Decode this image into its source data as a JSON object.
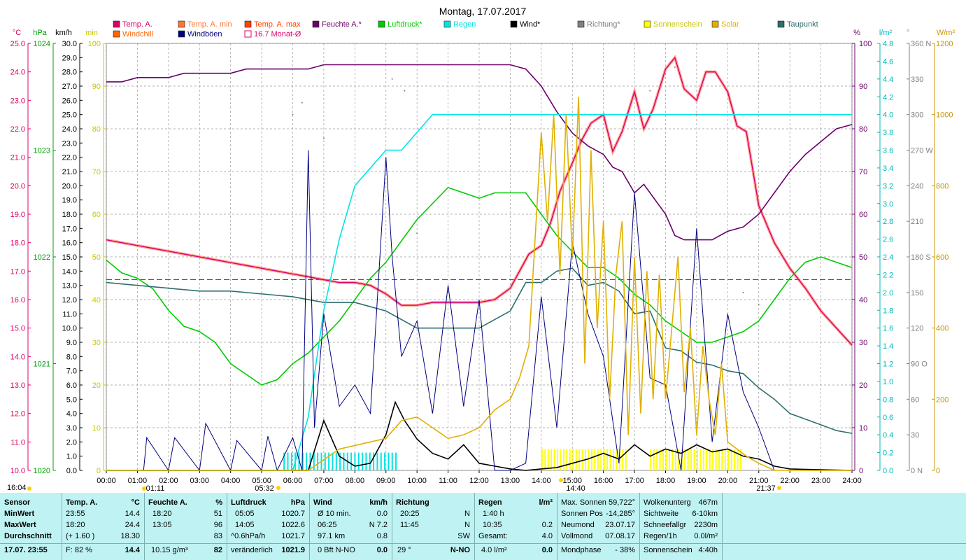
{
  "title": "Montag, 17.07.2017",
  "axis_heads": {
    "temp": "°C",
    "hpa": "hPa",
    "kmh": "km/h",
    "min": "min",
    "pct": "%",
    "lm2": "l/m²",
    "deg": "°",
    "wm2": "W/m²"
  },
  "legend": [
    {
      "label": "Temp. A.",
      "color": "#e0006a",
      "box": "fill"
    },
    {
      "label": "Windchill",
      "color": "#ff6600",
      "box": "fill"
    },
    {
      "label": "Temp. A. min",
      "color": "#ff7733",
      "box": "fill"
    },
    {
      "label": "Windböen",
      "color": "#000080",
      "box": "fill"
    },
    {
      "label": "Temp. A. max",
      "color": "#ff4400",
      "box": "fill"
    },
    {
      "label": "16.7 Monat-Ø",
      "color": "#e0006a",
      "box": "outline"
    },
    {
      "label": "Feuchte A.*",
      "color": "#6b006b",
      "box": "fill"
    },
    {
      "label": "Luftdruck*",
      "color": "#00cc00",
      "box": "fill"
    },
    {
      "label": "Regen",
      "color": "#00e5e5",
      "box": "fill"
    },
    {
      "label": "Wind*",
      "color": "#000000",
      "box": "fill"
    },
    {
      "label": "Richtung*",
      "color": "#808080",
      "box": "fill"
    },
    {
      "label": "Sonnenschein",
      "color": "#ffff00",
      "box": "fill"
    },
    {
      "label": "Solar",
      "color": "#e0b000",
      "box": "fill"
    },
    {
      "label": "Taupunkt",
      "color": "#2f6f6f",
      "box": "fill"
    }
  ],
  "colors": {
    "temp_axis": "#e0006a",
    "hpa_axis": "#00a000",
    "kmh_axis": "#000000",
    "min_axis": "#c8c800",
    "pct_axis": "#6b006b",
    "lm2_axis": "#00b8b8",
    "deg_axis": "#808080",
    "wm2_axis": "#c89600"
  },
  "chart_data": {
    "type": "line",
    "x_ticks": [
      "00:00",
      "01:00",
      "02:00",
      "03:00",
      "04:00",
      "05:00",
      "06:00",
      "07:00",
      "08:00",
      "09:00",
      "10:00",
      "11:00",
      "12:00",
      "13:00",
      "14:00",
      "15:00",
      "16:00",
      "17:00",
      "18:00",
      "19:00",
      "20:00",
      "21:00",
      "22:00",
      "23:00",
      "24:00"
    ],
    "x_range_hours": [
      0,
      24
    ],
    "axes": {
      "temp_c": {
        "range": [
          10,
          25
        ],
        "ticks": [
          "10.0",
          "11.0",
          "12.0",
          "13.0",
          "14.0",
          "15.0",
          "16.0",
          "17.0",
          "18.0",
          "19.0",
          "20.0",
          "21.0",
          "22.0",
          "23.0",
          "24.0",
          "25.0"
        ]
      },
      "pressure_hpa": {
        "range": [
          1020,
          1024
        ],
        "ticks": [
          "1020",
          "1021",
          "1022",
          "1023",
          "1024"
        ]
      },
      "wind_kmh": {
        "range": [
          0,
          30
        ],
        "ticks": [
          "0.0",
          "1.0",
          "2.0",
          "3.0",
          "4.0",
          "5.0",
          "6.0",
          "7.0",
          "8.0",
          "9.0",
          "10.0",
          "11.0",
          "12.0",
          "13.0",
          "14.0",
          "15.0",
          "16.0",
          "17.0",
          "18.0",
          "19.0",
          "20.0",
          "21.0",
          "22.0",
          "23.0",
          "24.0",
          "25.0",
          "26.0",
          "27.0",
          "28.0",
          "29.0",
          "30.0"
        ]
      },
      "sun_min": {
        "range": [
          0,
          100
        ],
        "ticks": [
          "0",
          "10",
          "20",
          "30",
          "40",
          "50",
          "60",
          "70",
          "80",
          "90",
          "100"
        ]
      },
      "humidity_pct": {
        "range": [
          0,
          100
        ],
        "ticks": [
          "0",
          "10",
          "20",
          "30",
          "40",
          "50",
          "60",
          "70",
          "80",
          "90",
          "100"
        ]
      },
      "rain_lm2": {
        "range": [
          0,
          4.8
        ],
        "ticks": [
          "0.0",
          "0.2",
          "0.4",
          "0.6",
          "0.8",
          "1.0",
          "1.2",
          "1.4",
          "1.6",
          "1.8",
          "2.0",
          "2.2",
          "2.4",
          "2.6",
          "2.8",
          "3.0",
          "3.2",
          "3.4",
          "3.6",
          "3.8",
          "4.0",
          "4.2",
          "4.4",
          "4.6",
          "4.8"
        ]
      },
      "direction_deg": {
        "range": [
          0,
          360
        ],
        "ticks": [
          "0 N",
          "30",
          "60",
          "90 O",
          "120",
          "150",
          "180 S",
          "210",
          "240",
          "270 W",
          "300",
          "330",
          "360 N"
        ]
      },
      "solar_wm2": {
        "range": [
          0,
          1200
        ],
        "ticks": [
          "0",
          "200",
          "400",
          "600",
          "800",
          "1000",
          "1200"
        ]
      }
    },
    "monthly_avg_temp": 16.7,
    "series": [
      {
        "name": "Temp. A.",
        "axis": "temp_c",
        "color": "#e0006a",
        "x": [
          0,
          0.5,
          1,
          1.5,
          2,
          2.5,
          3,
          3.5,
          4,
          4.5,
          5,
          5.5,
          6,
          6.5,
          7,
          7.5,
          8,
          8.5,
          9,
          9.5,
          10,
          10.5,
          11,
          11.5,
          12,
          12.5,
          13,
          13.3,
          13.6,
          14,
          14.3,
          14.6,
          15,
          15.3,
          15.6,
          16,
          16.3,
          16.6,
          17,
          17.3,
          17.6,
          18,
          18.3,
          18.6,
          19,
          19.3,
          19.6,
          20,
          20.3,
          20.6,
          21,
          21.5,
          22,
          22.5,
          23,
          23.5,
          24
        ],
        "y": [
          18.1,
          18.0,
          17.9,
          17.8,
          17.7,
          17.6,
          17.5,
          17.4,
          17.3,
          17.2,
          17.1,
          17.0,
          16.9,
          16.8,
          16.7,
          16.6,
          16.6,
          16.5,
          16.2,
          15.8,
          15.8,
          15.9,
          15.9,
          15.9,
          15.9,
          16.0,
          16.4,
          17.0,
          17.6,
          17.9,
          18.7,
          19.8,
          20.8,
          21.6,
          22.2,
          22.5,
          21.2,
          21.9,
          23.3,
          22.0,
          22.7,
          24.1,
          24.5,
          23.4,
          23.0,
          24.0,
          24.0,
          23.3,
          22.1,
          21.9,
          19.3,
          18.0,
          17.1,
          16.4,
          15.6,
          15.0,
          14.4
        ]
      },
      {
        "name": "Feuchte A.*",
        "axis": "humidity_pct",
        "color": "#6b006b",
        "x": [
          0,
          0.5,
          1,
          1.5,
          2,
          2.5,
          3,
          3.5,
          4,
          4.5,
          5,
          5.5,
          6,
          6.5,
          7,
          7.5,
          8,
          8.5,
          9,
          9.5,
          10,
          10.5,
          11,
          11.5,
          12,
          12.5,
          13,
          13.5,
          14,
          14.5,
          15,
          15.5,
          16,
          16.3,
          16.6,
          17,
          17.3,
          17.6,
          18,
          18.3,
          18.6,
          19,
          19.5,
          20,
          20.5,
          21,
          21.5,
          22,
          22.5,
          23,
          23.5,
          24
        ],
        "y": [
          91,
          91,
          92,
          92,
          92,
          93,
          93,
          93,
          93,
          94,
          94,
          94,
          94,
          94,
          95,
          95,
          95,
          95,
          95,
          95,
          95,
          95,
          95,
          95,
          95,
          95,
          95,
          94,
          90,
          84,
          79,
          76,
          74,
          71,
          70,
          65,
          67,
          64,
          60,
          55,
          54,
          54,
          54,
          56,
          57,
          60,
          65,
          70,
          74,
          77,
          80,
          81
        ]
      },
      {
        "name": "Luftdruck*",
        "axis": "pressure_hpa",
        "color": "#00cc00",
        "x": [
          0,
          0.5,
          1,
          1.5,
          2,
          2.5,
          3,
          3.5,
          4,
          4.5,
          5,
          5.5,
          6,
          6.5,
          7,
          7.5,
          8,
          8.5,
          9,
          9.5,
          10,
          10.5,
          11,
          11.5,
          12,
          12.5,
          13,
          13.5,
          14,
          14.5,
          15,
          15.5,
          16,
          16.5,
          17,
          17.5,
          18,
          18.5,
          19,
          19.5,
          20,
          20.5,
          21,
          21.5,
          22,
          22.5,
          23,
          23.5,
          24
        ],
        "y": [
          1021.97,
          1021.85,
          1021.8,
          1021.7,
          1021.5,
          1021.35,
          1021.3,
          1021.2,
          1021.0,
          1020.9,
          1020.8,
          1020.85,
          1021.0,
          1021.1,
          1021.25,
          1021.4,
          1021.6,
          1021.8,
          1021.95,
          1022.15,
          1022.35,
          1022.5,
          1022.65,
          1022.6,
          1022.55,
          1022.6,
          1022.6,
          1022.6,
          1022.4,
          1022.2,
          1022.05,
          1021.9,
          1021.9,
          1021.8,
          1021.65,
          1021.55,
          1021.4,
          1021.3,
          1021.2,
          1021.2,
          1021.25,
          1021.3,
          1021.4,
          1021.6,
          1021.8,
          1021.95,
          1022.0,
          1021.95,
          1021.9
        ]
      },
      {
        "name": "Taupunkt",
        "axis": "temp_c",
        "color": "#2f6f6f",
        "x": [
          0,
          1,
          2,
          3,
          4,
          5,
          6,
          7,
          8,
          9,
          10,
          11,
          12,
          13,
          13.5,
          14,
          14.5,
          15,
          15.5,
          16,
          16.5,
          17,
          17.5,
          18,
          18.5,
          19,
          19.5,
          20,
          20.5,
          21,
          21.5,
          22,
          22.5,
          23,
          23.5,
          24
        ],
        "y": [
          16.6,
          16.5,
          16.4,
          16.3,
          16.3,
          16.2,
          16.1,
          15.9,
          15.9,
          15.6,
          15.0,
          15.0,
          15.0,
          15.6,
          16.6,
          16.6,
          17.0,
          17.1,
          16.5,
          16.6,
          16.3,
          15.5,
          15.6,
          14.3,
          14.2,
          13.8,
          13.7,
          13.5,
          13.4,
          12.9,
          12.5,
          12.0,
          11.8,
          11.6,
          11.4,
          11.3
        ]
      },
      {
        "name": "Wind*",
        "axis": "wind_kmh",
        "color": "#000000",
        "x": [
          0,
          6.5,
          7,
          7.5,
          8,
          8.5,
          9,
          9.3,
          9.6,
          10,
          10.5,
          11,
          11.5,
          12,
          12.5,
          13,
          13.5,
          14,
          14.5,
          15,
          15.5,
          16,
          16.5,
          17,
          17.5,
          18,
          18.5,
          19,
          19.5,
          20,
          20.5,
          21,
          21.5,
          22,
          24
        ],
        "y": [
          0,
          0,
          3.5,
          1,
          0.3,
          0.5,
          2.5,
          4.8,
          3.5,
          2.2,
          1.2,
          0.8,
          1.8,
          0.5,
          0.3,
          0.1,
          0,
          0.1,
          0.2,
          0.5,
          0.8,
          1.2,
          0.8,
          1.8,
          1.0,
          1.5,
          1.2,
          1.8,
          1.3,
          1.5,
          1.0,
          0.8,
          0.3,
          0.1,
          0
        ]
      },
      {
        "name": "Regen",
        "axis": "rain_lm2",
        "color": "#00e5e5",
        "x": [
          0,
          6.0,
          6.5,
          7.0,
          7.5,
          8.0,
          8.5,
          9.0,
          9.5,
          10.5,
          11,
          24
        ],
        "y": [
          0,
          0,
          0.6,
          1.8,
          2.6,
          3.2,
          3.4,
          3.6,
          3.6,
          4.0,
          4.0,
          4.0
        ]
      },
      {
        "name": "Windböen",
        "axis": "wind_kmh",
        "color": "#000080",
        "x": [
          0,
          1.2,
          1.3,
          2,
          2.2,
          3,
          3.2,
          4,
          4.2,
          5,
          5.2,
          5.5,
          6,
          6.3,
          6.5,
          6.7,
          7,
          7.5,
          8,
          8.5,
          9,
          9.2,
          9.5,
          10,
          10.5,
          11,
          11.5,
          12,
          12.5,
          13,
          13.5,
          14,
          14.5,
          15,
          15.5,
          16,
          16.5,
          17,
          17.5,
          18,
          18.5,
          19,
          19.5,
          20,
          20.5,
          21,
          21.5,
          24
        ],
        "y": [
          0,
          0,
          2.3,
          0,
          2.3,
          0,
          3.3,
          0,
          2.1,
          0,
          2.4,
          0,
          2.3,
          0,
          22.5,
          3.0,
          11.0,
          4.5,
          6.0,
          4.0,
          22.0,
          15.0,
          8.0,
          10.5,
          4.0,
          13.0,
          4.5,
          12.0,
          0,
          0,
          0.5,
          12.2,
          3.0,
          16.0,
          11.0,
          8.0,
          0.5,
          19.5,
          6.5,
          6.0,
          0,
          17.0,
          2.0,
          11.0,
          5.5,
          3.0,
          0,
          0
        ]
      },
      {
        "name": "Solar",
        "axis": "solar_wm2",
        "color": "#e0b000",
        "x": [
          0,
          6.5,
          7,
          7.5,
          8,
          8.5,
          9,
          9.5,
          10,
          10.5,
          11,
          11.5,
          12,
          12.5,
          13,
          13.3,
          13.6,
          14,
          14.2,
          14.4,
          14.6,
          14.8,
          15,
          15.2,
          15.4,
          15.6,
          15.8,
          16,
          16.2,
          16.4,
          16.6,
          16.8,
          17,
          17.2,
          17.4,
          17.6,
          17.8,
          18,
          18.2,
          18.4,
          18.6,
          18.8,
          19,
          19.2,
          19.4,
          19.6,
          19.8,
          20,
          20.3,
          20.6,
          21,
          21.5,
          22,
          24
        ],
        "y": [
          0,
          0,
          30,
          60,
          70,
          80,
          90,
          140,
          150,
          120,
          90,
          100,
          120,
          170,
          200,
          260,
          350,
          950,
          700,
          1000,
          550,
          1000,
          600,
          1050,
          300,
          900,
          400,
          700,
          200,
          550,
          700,
          100,
          600,
          160,
          560,
          200,
          550,
          200,
          400,
          600,
          220,
          400,
          100,
          350,
          200,
          100,
          300,
          80,
          60,
          40,
          20,
          0,
          0,
          0
        ]
      }
    ]
  },
  "time_markers": {
    "sunrise_label": "05:32",
    "sunset_label": "21:37",
    "solar_noon_label": "14:40",
    "moon_label": "01:11",
    "corner_label": "16:04"
  },
  "stats": {
    "sensor": {
      "head": "Sensor",
      "rows": [
        "MinWert",
        "MaxWert",
        "Durchschnitt",
        "17.07. 23:55"
      ]
    },
    "temp": {
      "head": "Temp. A.",
      "unit": "°C",
      "rows": [
        [
          "23:55",
          "14.4"
        ],
        [
          "18:20",
          "24.4"
        ],
        [
          "(+ 1.60 )",
          "18.30"
        ],
        [
          "F: 82 %",
          "14.4"
        ]
      ]
    },
    "hum": {
      "head": "Feuchte A.",
      "unit": "%",
      "rows": [
        [
          "18:20",
          "51"
        ],
        [
          "13:05",
          "96"
        ],
        [
          "",
          "83"
        ],
        [
          "10.15 g/m³",
          "82"
        ]
      ]
    },
    "press": {
      "head": "Luftdruck",
      "unit": "hPa",
      "rows": [
        [
          "05:05",
          "1020.7"
        ],
        [
          "14:05",
          "1022.6"
        ],
        [
          "^0.6hPa/h",
          "1021.7"
        ],
        [
          "veränderlich",
          "1021.9"
        ]
      ]
    },
    "wind": {
      "head": "Wind",
      "unit": "km/h",
      "rows": [
        [
          "Ø 10 min.",
          "0.0"
        ],
        [
          "06:25",
          "N 7.2"
        ],
        [
          "97.1 km",
          "0.8"
        ],
        [
          "0 Bft N-NO",
          "0.0"
        ]
      ]
    },
    "dir": {
      "head": "Richtung",
      "rows": [
        [
          "20:25",
          "N"
        ],
        [
          "11:45",
          "N"
        ],
        [
          "",
          "SW"
        ],
        [
          "29 °",
          "N-NO"
        ]
      ]
    },
    "rain": {
      "head": "Regen",
      "unit": "l/m²",
      "rows": [
        [
          "1:40 h",
          ""
        ],
        [
          "10:35",
          "0.2"
        ],
        [
          "Gesamt:",
          "4.0"
        ],
        [
          "4.0 l/m²",
          "0.0"
        ]
      ]
    },
    "sun": {
      "rows": [
        [
          "Max. Sonnen",
          "59,722°"
        ],
        [
          "Sonnen Pos",
          "-14,285°"
        ],
        [
          "Neumond",
          "23.07.17"
        ],
        [
          "Vollmond",
          "07.08.17"
        ],
        [
          "Mondphase",
          "- 38%"
        ]
      ]
    },
    "cloud": {
      "rows": [
        [
          "Wolkenunterg",
          "467m"
        ],
        [
          "Sichtweite",
          "6-10km"
        ],
        [
          "Schneefallgr",
          "2230m"
        ],
        [
          "Regen/1h",
          "0.0l/m²"
        ],
        [
          "Sonnenschein",
          "4:40h"
        ]
      ]
    }
  }
}
